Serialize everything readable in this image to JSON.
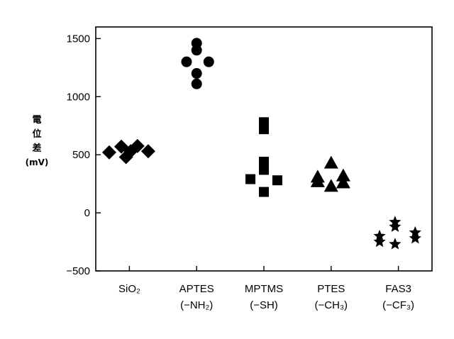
{
  "chart_data": {
    "type": "scatter",
    "ylabel": {
      "lines": [
        "電",
        "位",
        "差",
        "(mV)"
      ]
    },
    "ylim": [
      -500,
      1600
    ],
    "yticks": [
      -500,
      0,
      500,
      1000,
      1500
    ],
    "categories": [
      {
        "line1": "SiO₂",
        "line2": ""
      },
      {
        "line1": "APTES",
        "line2": "(−NH₂)"
      },
      {
        "line1": "MPTMS",
        "line2": "(−SH)"
      },
      {
        "line1": "PTES",
        "line2": "(−CH₃)"
      },
      {
        "line1": "FAS3",
        "line2": "(−CF₃)"
      }
    ],
    "series": [
      {
        "marker": "diamond",
        "points": [
          {
            "dx": -0.3,
            "y": 520
          },
          {
            "dx": -0.12,
            "y": 570
          },
          {
            "dx": -0.05,
            "y": 480
          },
          {
            "dx": 0.02,
            "y": 530
          },
          {
            "dx": 0.12,
            "y": 575
          },
          {
            "dx": 0.28,
            "y": 530
          }
        ]
      },
      {
        "marker": "circle",
        "points": [
          {
            "dx": -0.15,
            "y": 1300
          },
          {
            "dx": 0.0,
            "y": 1460
          },
          {
            "dx": 0.0,
            "y": 1400
          },
          {
            "dx": 0.0,
            "y": 1200
          },
          {
            "dx": 0.0,
            "y": 1110
          },
          {
            "dx": 0.18,
            "y": 1300
          }
        ]
      },
      {
        "marker": "square",
        "points": [
          {
            "dx": -0.2,
            "y": 290
          },
          {
            "dx": 0.0,
            "y": 780
          },
          {
            "dx": 0.0,
            "y": 720
          },
          {
            "dx": 0.0,
            "y": 440
          },
          {
            "dx": 0.0,
            "y": 370
          },
          {
            "dx": 0.0,
            "y": 180
          },
          {
            "dx": 0.2,
            "y": 280
          }
        ]
      },
      {
        "marker": "triangle",
        "points": [
          {
            "dx": -0.2,
            "y": 310
          },
          {
            "dx": -0.2,
            "y": 270
          },
          {
            "dx": 0.0,
            "y": 430
          },
          {
            "dx": 0.0,
            "y": 230
          },
          {
            "dx": 0.18,
            "y": 320
          },
          {
            "dx": 0.18,
            "y": 260
          }
        ]
      },
      {
        "marker": "star",
        "points": [
          {
            "dx": -0.28,
            "y": -200
          },
          {
            "dx": -0.28,
            "y": -250
          },
          {
            "dx": -0.05,
            "y": -80
          },
          {
            "dx": -0.05,
            "y": -120
          },
          {
            "dx": -0.05,
            "y": -270
          },
          {
            "dx": 0.25,
            "y": -170
          },
          {
            "dx": 0.25,
            "y": -220
          }
        ]
      }
    ],
    "marker_color": "#000000",
    "grid": false,
    "legend": "none"
  }
}
